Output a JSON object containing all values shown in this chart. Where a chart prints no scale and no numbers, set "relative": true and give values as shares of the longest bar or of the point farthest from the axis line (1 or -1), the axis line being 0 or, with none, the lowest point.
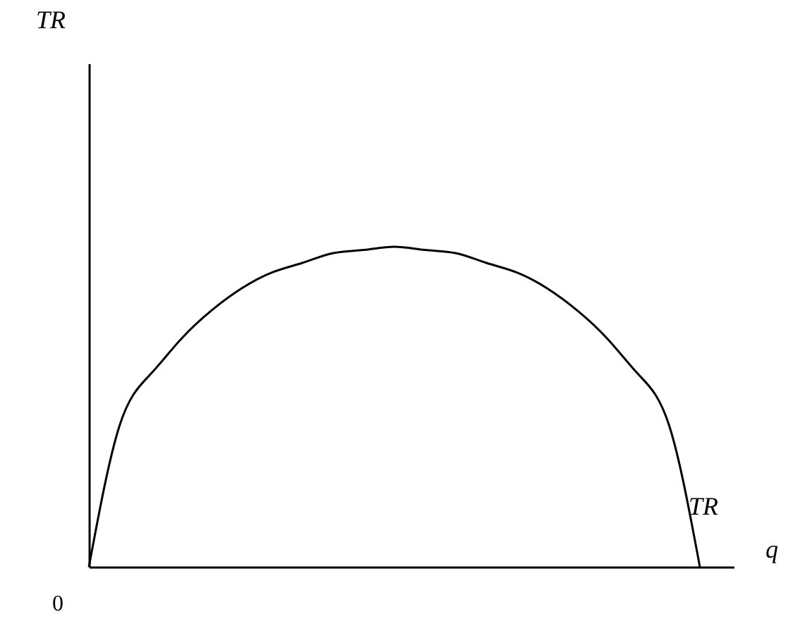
{
  "chart_data": {
    "type": "line",
    "relative": true,
    "xlabel": "q",
    "tick_labels": false,
    "grid": false,
    "marker": "none",
    "line_style": "solid",
    "annotations": [
      "TR",
      "0"
    ],
    "categories": [
      null,
      null,
      null,
      null,
      null,
      null,
      null,
      null,
      null,
      null,
      null,
      null,
      null,
      null,
      null,
      null,
      null,
      null,
      null,
      null,
      null
    ],
    "series": [
      {
        "name": "TR",
        "color": "#000000",
        "values": [
          0,
          0.44,
          0.6,
          0.71,
          0.8,
          0.87,
          0.92,
          0.95,
          0.98,
          0.99,
          1,
          0.99,
          0.98,
          0.95,
          0.92,
          0.87,
          0.8,
          0.71,
          0.6,
          0.44,
          0
        ]
      }
    ]
  }
}
